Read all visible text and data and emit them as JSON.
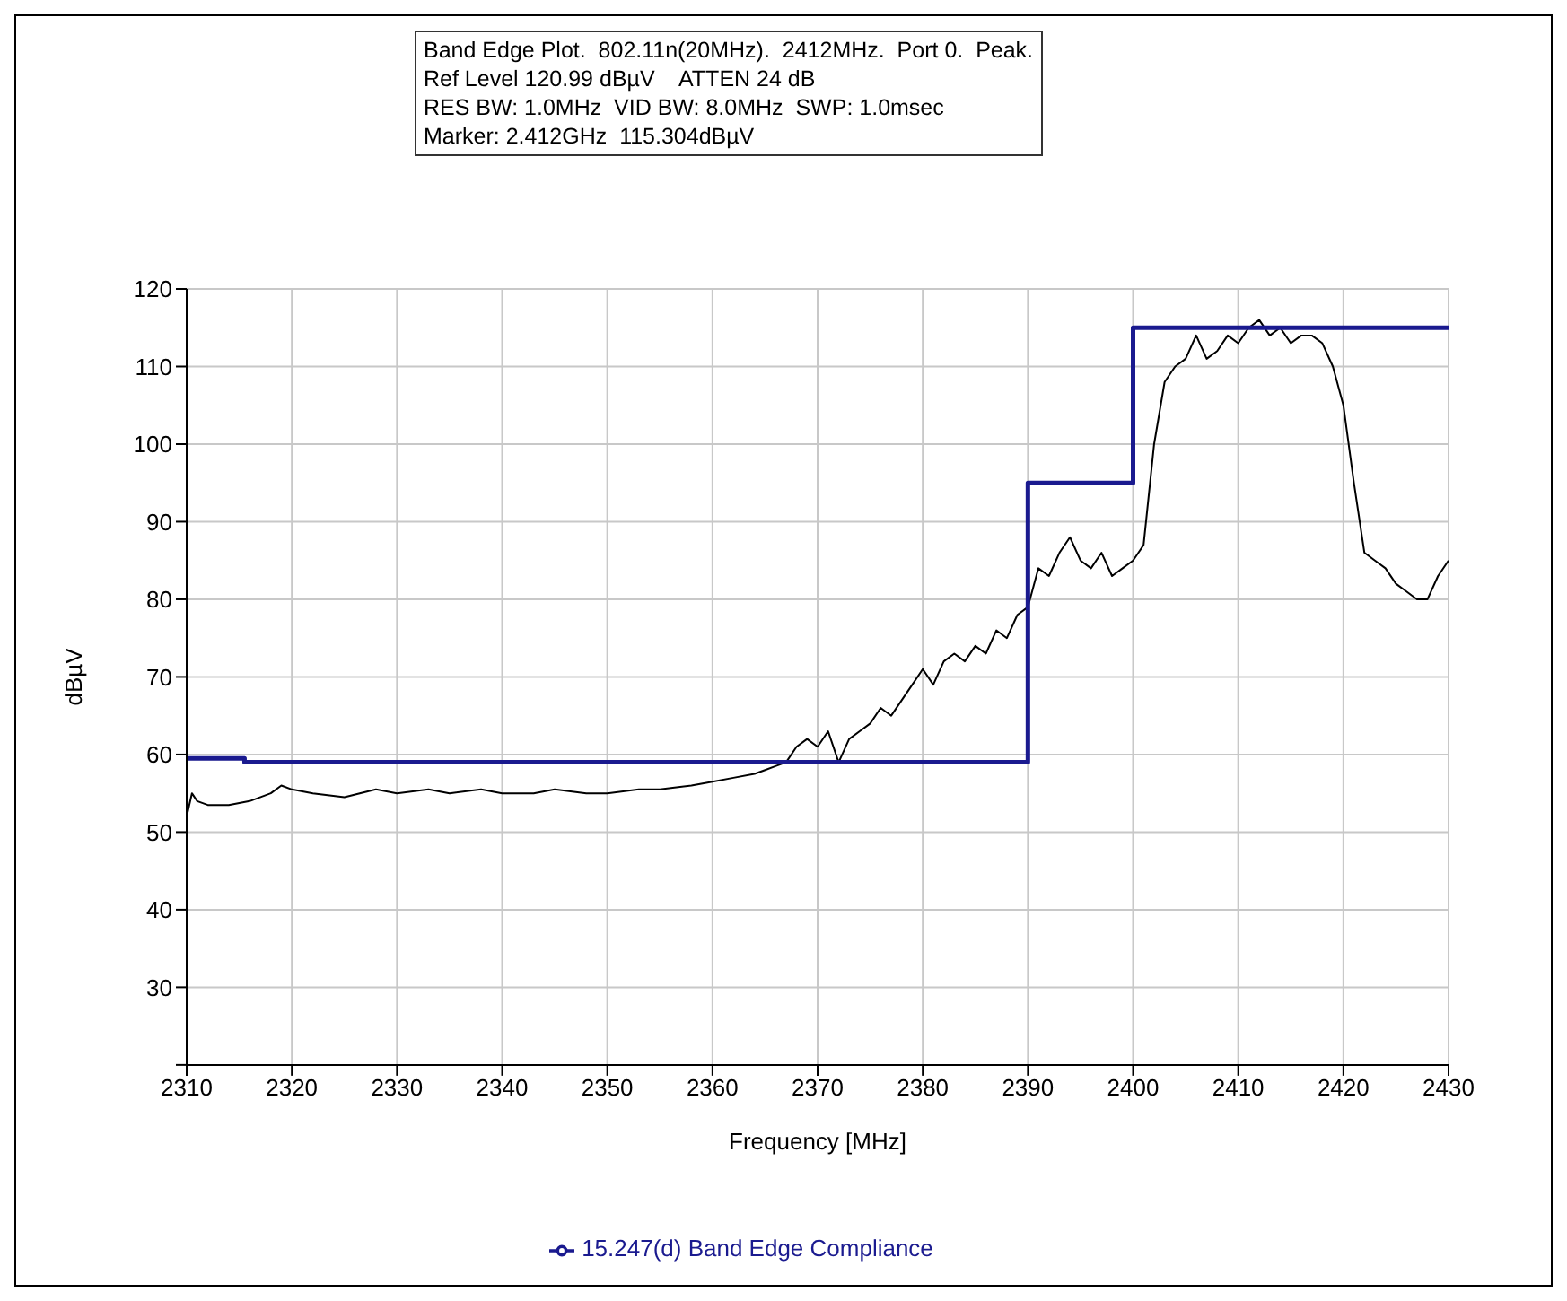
{
  "chart_data": {
    "type": "line",
    "xlabel": "Frequency [MHz]",
    "ylabel": "dBµV",
    "annotations": [
      "Band Edge Plot.  802.11n(20MHz).  2412MHz.  Port 0.  Peak.",
      "Ref Level 120.99 dBµV    ATTEN 24 dB",
      "RES BW: 1.0MHz  VID BW: 8.0MHz  SWP: 1.0msec",
      "Marker: 2.412GHz  115.304dBµV"
    ],
    "xlim": [
      2310,
      2430
    ],
    "xticks": [
      2310,
      2320,
      2330,
      2340,
      2350,
      2360,
      2370,
      2380,
      2390,
      2400,
      2410,
      2420,
      2430
    ],
    "ylim": [
      20,
      120
    ],
    "yticks": [
      {
        "value": 20,
        "label": null
      },
      30,
      40,
      50,
      60,
      70,
      80,
      90,
      100,
      110,
      120
    ],
    "grid": true,
    "legend": "bottom",
    "line_style": "solid",
    "marker": "none",
    "series": [
      {
        "color": "#000000",
        "x": [
          2310,
          2310.5,
          2311,
          2312,
          2314,
          2316,
          2318,
          2319,
          2320,
          2322,
          2325,
          2328,
          2330,
          2333,
          2335,
          2338,
          2340,
          2343,
          2345,
          2348,
          2350,
          2353,
          2355,
          2358,
          2360,
          2362,
          2364,
          2365,
          2366,
          2367,
          2368,
          2369,
          2370,
          2371,
          2372,
          2373,
          2374,
          2375,
          2376,
          2377,
          2378,
          2379,
          2380,
          2381,
          2382,
          2383,
          2384,
          2385,
          2386,
          2387,
          2388,
          2389,
          2390,
          2391,
          2392,
          2393,
          2394,
          2395,
          2396,
          2397,
          2398,
          2399,
          2400,
          2401,
          2402,
          2403,
          2404,
          2405,
          2406,
          2407,
          2408,
          2409,
          2410,
          2411,
          2412,
          2413,
          2414,
          2415,
          2416,
          2417,
          2418,
          2419,
          2420,
          2421,
          2422,
          2423,
          2424,
          2425,
          2426,
          2427,
          2428,
          2429,
          2430
        ],
        "values": [
          52,
          55,
          54,
          53.5,
          53.5,
          54,
          55,
          56,
          55.5,
          55,
          54.5,
          55.5,
          55,
          55.5,
          55,
          55.5,
          55,
          55,
          55.5,
          55,
          55,
          55.5,
          55.5,
          56,
          56.5,
          57,
          57.5,
          58,
          58.5,
          59,
          61,
          62,
          61,
          63,
          59,
          62,
          63,
          64,
          66,
          65,
          67,
          69,
          71,
          69,
          72,
          73,
          72,
          74,
          73,
          76,
          75,
          78,
          79,
          84,
          83,
          86,
          88,
          85,
          84,
          86,
          83,
          84,
          85,
          87,
          100,
          108,
          110,
          111,
          114,
          111,
          112,
          114,
          113,
          115,
          116,
          114,
          115,
          113,
          114,
          114,
          113,
          110,
          105,
          95,
          86,
          85,
          84,
          82,
          81,
          80,
          80,
          83,
          85
        ]
      },
      {
        "name": "15.247(d) Band Edge Compliance",
        "color": "#1a1a8f",
        "x": [
          2310,
          2315.5,
          2315.5,
          2390,
          2390,
          2400,
          2400,
          2430
        ],
        "values": [
          59.5,
          59.5,
          59,
          59,
          95,
          95,
          115,
          115
        ]
      }
    ]
  }
}
